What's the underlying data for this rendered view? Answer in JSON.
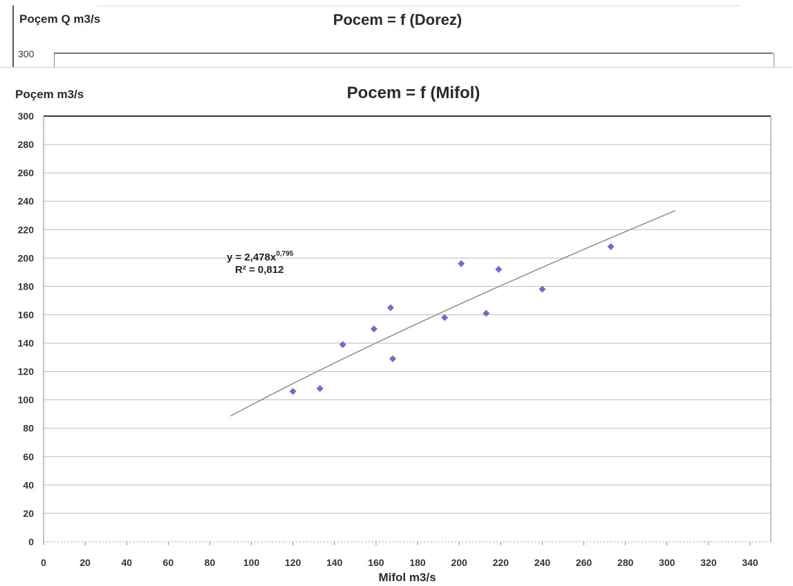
{
  "background_chart": {
    "title": "Pocem = f (Dorez)",
    "ylabel": "Poçem Q m3/s",
    "ytick_top": "300"
  },
  "chart_data": {
    "type": "scatter",
    "title": "Pocem = f (Mifol)",
    "xlabel": "Mifol m3/s",
    "ylabel": "Poçem m3/s",
    "xlim": [
      0,
      350
    ],
    "ylim": [
      0,
      300
    ],
    "xticks": [
      0,
      20,
      40,
      60,
      80,
      100,
      120,
      140,
      160,
      180,
      200,
      220,
      240,
      260,
      280,
      300,
      320,
      340
    ],
    "yticks": [
      0,
      20,
      40,
      60,
      80,
      100,
      120,
      140,
      160,
      180,
      200,
      220,
      240,
      260,
      280,
      300
    ],
    "grid": "horizontal",
    "colors": {
      "points": "#6b6ec8",
      "trendline": "#8c8c8c",
      "grid": "#bdbdbd"
    },
    "points": [
      {
        "x": 120,
        "y": 106
      },
      {
        "x": 133,
        "y": 108
      },
      {
        "x": 144,
        "y": 139
      },
      {
        "x": 159,
        "y": 150
      },
      {
        "x": 167,
        "y": 165
      },
      {
        "x": 168,
        "y": 129
      },
      {
        "x": 193,
        "y": 158
      },
      {
        "x": 201,
        "y": 196
      },
      {
        "x": 213,
        "y": 161
      },
      {
        "x": 219,
        "y": 192
      },
      {
        "x": 240,
        "y": 178
      },
      {
        "x": 273,
        "y": 208
      }
    ],
    "trendline": {
      "type": "power",
      "coefficient": 2.478,
      "exponent": 0.795,
      "x_from": 90,
      "x_to": 304,
      "equation_base": "y = 2,478x",
      "equation_exp": "0,795",
      "r2_label": "R² = 0,812"
    }
  }
}
